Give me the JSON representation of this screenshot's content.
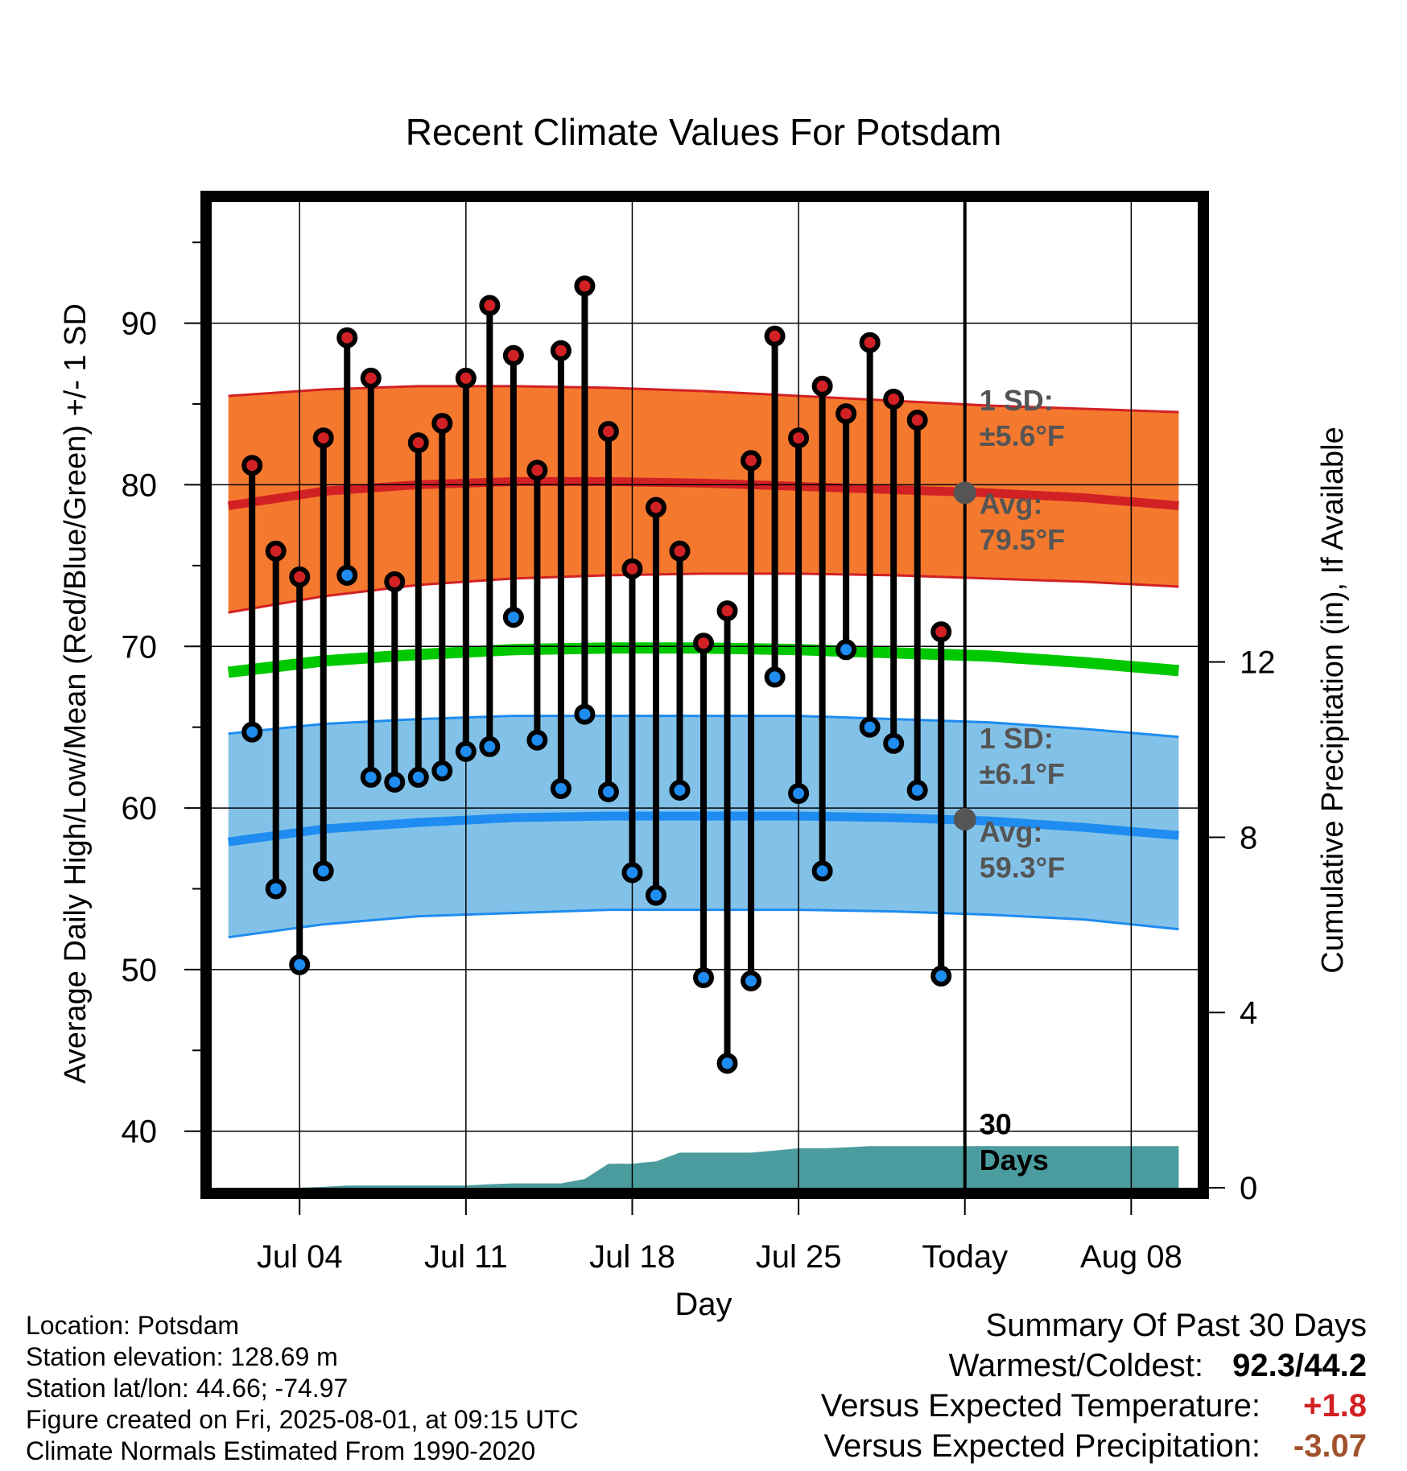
{
  "chart_data": {
    "type": "line",
    "title": "Recent Climate Values For Potsdam",
    "xlabel": "Day",
    "ylabel": "Average Daily High/Low/Mean (Red/Blue/Green) +/- 1 SD",
    "y2label": "Cumulative Precipitation (in), If Available",
    "ylim": [
      36.5,
      97.5
    ],
    "y_ticks": [
      40,
      50,
      60,
      70,
      80,
      90
    ],
    "y2lim": [
      0,
      22.5
    ],
    "y2_ticks": [
      0,
      4,
      8,
      12
    ],
    "xlim": [
      -0.7,
      40.8
    ],
    "x_ticks": [
      {
        "day": 3,
        "label": "Jul 04"
      },
      {
        "day": 10,
        "label": "Jul 11"
      },
      {
        "day": 17,
        "label": "Jul 18"
      },
      {
        "day": 24,
        "label": "Jul 25"
      },
      {
        "day": 31,
        "label": "Today"
      },
      {
        "day": 38,
        "label": "Aug 08"
      }
    ],
    "grid": true,
    "days": [
      1,
      2,
      3,
      4,
      5,
      6,
      7,
      8,
      9,
      10,
      11,
      12,
      13,
      14,
      15,
      16,
      17,
      18,
      19,
      20,
      21,
      22,
      23,
      24,
      25,
      26,
      27,
      28,
      29,
      30
    ],
    "daily_high": [
      81.2,
      75.9,
      74.3,
      82.9,
      89.1,
      86.6,
      74.0,
      82.6,
      83.8,
      86.6,
      91.1,
      88.0,
      80.9,
      88.3,
      92.3,
      83.3,
      74.8,
      78.6,
      75.9,
      70.2,
      72.2,
      81.5,
      89.2,
      82.9,
      86.1,
      84.4,
      88.8,
      85.3,
      84.0,
      70.9
    ],
    "daily_low": [
      64.7,
      55.0,
      50.3,
      56.1,
      74.4,
      61.9,
      61.6,
      61.9,
      62.3,
      63.5,
      63.8,
      71.8,
      64.2,
      61.2,
      65.8,
      61.0,
      56.0,
      54.6,
      61.1,
      49.5,
      44.2,
      49.3,
      68.1,
      60.9,
      56.1,
      69.8,
      65.0,
      64.0,
      61.1,
      49.6
    ],
    "normal_high": {
      "x": [
        0,
        4,
        8,
        12,
        16,
        20,
        24,
        28,
        32,
        36,
        40
      ],
      "mean": [
        78.7,
        79.6,
        80.0,
        80.2,
        80.2,
        80.1,
        79.9,
        79.7,
        79.5,
        79.2,
        78.7
      ],
      "sd_upper": [
        85.5,
        85.9,
        86.1,
        86.1,
        86.0,
        85.8,
        85.5,
        85.2,
        84.9,
        84.7,
        84.5
      ],
      "sd_lower": [
        72.1,
        73.1,
        73.8,
        74.2,
        74.4,
        74.5,
        74.5,
        74.4,
        74.2,
        74.0,
        73.7
      ]
    },
    "normal_mean": {
      "x": [
        0,
        4,
        8,
        12,
        16,
        20,
        24,
        28,
        32,
        36,
        40
      ],
      "values": [
        68.4,
        69.1,
        69.5,
        69.8,
        69.9,
        69.9,
        69.8,
        69.6,
        69.4,
        69.0,
        68.5
      ]
    },
    "normal_low": {
      "x": [
        0,
        4,
        8,
        12,
        16,
        20,
        24,
        28,
        32,
        36,
        40
      ],
      "mean": [
        57.9,
        58.7,
        59.1,
        59.4,
        59.5,
        59.5,
        59.5,
        59.4,
        59.2,
        58.8,
        58.3
      ],
      "sd_upper": [
        64.6,
        65.2,
        65.5,
        65.7,
        65.7,
        65.7,
        65.7,
        65.5,
        65.3,
        64.9,
        64.4
      ],
      "sd_lower": [
        52.0,
        52.8,
        53.3,
        53.5,
        53.7,
        53.7,
        53.7,
        53.6,
        53.4,
        53.1,
        52.5
      ]
    },
    "precip_cumulative": {
      "x": [
        0,
        1,
        2,
        3,
        4,
        5,
        6,
        7,
        8,
        9,
        10,
        11,
        12,
        13,
        14,
        15,
        16,
        17,
        18,
        19,
        20,
        21,
        22,
        23,
        24,
        25,
        26,
        27,
        28,
        29,
        30,
        40
      ],
      "values": [
        0,
        0,
        0,
        0,
        0.02,
        0.05,
        0.05,
        0.05,
        0.05,
        0.05,
        0.05,
        0.08,
        0.1,
        0.1,
        0.1,
        0.2,
        0.55,
        0.55,
        0.6,
        0.8,
        0.8,
        0.8,
        0.8,
        0.85,
        0.9,
        0.9,
        0.92,
        0.95,
        0.95,
        0.95,
        0.95,
        0.95
      ]
    },
    "annotations": {
      "high_sd_label": "1 SD:",
      "high_sd_value": "±5.6°F",
      "high_avg_label": "Avg:",
      "high_avg_value": "79.5°F",
      "low_sd_label": "1 SD:",
      "low_sd_value": "±6.1°F",
      "low_avg_label": "Avg:",
      "low_avg_value": "59.3°F",
      "days_value": "30",
      "days_label": "Days"
    },
    "colors": {
      "high_band": "#f4792f",
      "high_line": "#d22124",
      "mean_line": "#00c800",
      "low_band": "#83c2e8",
      "low_line": "#1e8cf0",
      "high_dot": "#d22124",
      "low_dot": "#1e8cf0",
      "precip": "#4b9c9e",
      "annotation": "#555555"
    }
  },
  "footer": {
    "location": "Location: Potsdam",
    "elevation": "Station elevation: 128.69 m",
    "latlon": "Station lat/lon: 44.66; -74.97",
    "created": "Figure created on Fri, 2025-08-01, at 09:15 UTC",
    "normals": "Climate Normals Estimated From 1990-2020"
  },
  "summary": {
    "title": "Summary Of Past 30 Days",
    "warmest_label": "Warmest/Coldest:",
    "warmest_value": "92.3/44.2",
    "temp_label": "Versus Expected Temperature:",
    "temp_value": "+1.8",
    "temp_color": "#d22124",
    "precip_label": "Versus Expected Precipitation:",
    "precip_value": "-3.07",
    "precip_color": "#a0522d"
  }
}
